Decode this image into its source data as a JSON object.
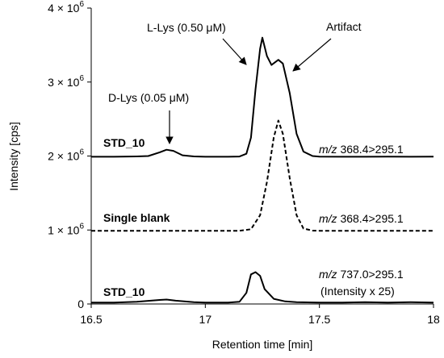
{
  "chart_data": {
    "type": "line",
    "xlabel": "Retention time [min]",
    "ylabel": "Intensity [cps]",
    "xlim": [
      16.5,
      18
    ],
    "ylim": [
      0,
      4000000
    ],
    "x_ticks": [
      {
        "value": 16.5,
        "label": "16.5"
      },
      {
        "value": 17,
        "label": "17"
      },
      {
        "value": 17.5,
        "label": "17.5"
      },
      {
        "value": 18,
        "label": "18"
      }
    ],
    "y_ticks": [
      {
        "value": 0,
        "label": "0",
        "mantissa": "",
        "exp": ""
      },
      {
        "value": 1000000,
        "label": "",
        "mantissa": "1 × 10",
        "exp": "6"
      },
      {
        "value": 2000000,
        "label": "",
        "mantissa": "2 × 10",
        "exp": "6"
      },
      {
        "value": 3000000,
        "label": "",
        "mantissa": "3 × 10",
        "exp": "6"
      },
      {
        "value": 4000000,
        "label": "",
        "mantissa": "4 × 10",
        "exp": "6"
      }
    ],
    "grid": false,
    "legend": "none",
    "series": [
      {
        "name": "STD_10",
        "transition": "368.4>295.1",
        "style": "solid",
        "points": [
          [
            16.5,
            1990000
          ],
          [
            16.6,
            1990000
          ],
          [
            16.7,
            1995000
          ],
          [
            16.75,
            2000000
          ],
          [
            16.8,
            2050000
          ],
          [
            16.83,
            2085000
          ],
          [
            16.86,
            2070000
          ],
          [
            16.9,
            2010000
          ],
          [
            16.95,
            1995000
          ],
          [
            17.0,
            1990000
          ],
          [
            17.1,
            1990000
          ],
          [
            17.15,
            1993000
          ],
          [
            17.18,
            2030000
          ],
          [
            17.2,
            2250000
          ],
          [
            17.22,
            2900000
          ],
          [
            17.24,
            3450000
          ],
          [
            17.25,
            3600000
          ],
          [
            17.27,
            3350000
          ],
          [
            17.29,
            3230000
          ],
          [
            17.32,
            3300000
          ],
          [
            17.34,
            3250000
          ],
          [
            17.37,
            2850000
          ],
          [
            17.4,
            2300000
          ],
          [
            17.43,
            2060000
          ],
          [
            17.47,
            2000000
          ],
          [
            17.5,
            1992000
          ],
          [
            17.6,
            1990000
          ],
          [
            17.7,
            1990000
          ],
          [
            17.8,
            1992000
          ],
          [
            17.9,
            1990000
          ],
          [
            18.0,
            1992000
          ]
        ]
      },
      {
        "name": "Single blank",
        "transition": "368.4>295.1",
        "style": "dashed",
        "points": [
          [
            16.5,
            990000
          ],
          [
            17.0,
            990000
          ],
          [
            17.15,
            990000
          ],
          [
            17.2,
            1010000
          ],
          [
            17.24,
            1200000
          ],
          [
            17.27,
            1650000
          ],
          [
            17.3,
            2250000
          ],
          [
            17.32,
            2480000
          ],
          [
            17.34,
            2300000
          ],
          [
            17.37,
            1700000
          ],
          [
            17.4,
            1200000
          ],
          [
            17.43,
            1020000
          ],
          [
            17.47,
            992000
          ],
          [
            17.5,
            990000
          ],
          [
            18.0,
            990000
          ]
        ]
      },
      {
        "name": "STD_10",
        "transition": "737.0>295.1",
        "style": "solid",
        "points": [
          [
            16.5,
            20000
          ],
          [
            16.6,
            20000
          ],
          [
            16.7,
            30000
          ],
          [
            16.8,
            55000
          ],
          [
            16.83,
            60000
          ],
          [
            16.87,
            45000
          ],
          [
            16.95,
            25000
          ],
          [
            17.0,
            20000
          ],
          [
            17.1,
            20000
          ],
          [
            17.15,
            30000
          ],
          [
            17.18,
            150000
          ],
          [
            17.2,
            400000
          ],
          [
            17.22,
            430000
          ],
          [
            17.24,
            380000
          ],
          [
            17.26,
            200000
          ],
          [
            17.3,
            70000
          ],
          [
            17.35,
            35000
          ],
          [
            17.4,
            25000
          ],
          [
            17.5,
            20000
          ],
          [
            17.6,
            20000
          ],
          [
            17.7,
            25000
          ],
          [
            17.8,
            20000
          ],
          [
            17.9,
            25000
          ],
          [
            18.0,
            20000
          ]
        ]
      }
    ],
    "labels": {
      "std10_top": "STD_10",
      "blank": "Single blank",
      "std10_bottom": "STD_10",
      "mz_prefix": "m/z",
      "tr1": " 368.4>295.1",
      "tr2": " 368.4>295.1",
      "tr3": " 737.0>295.1",
      "intensity_note": "(Intensity x 25)",
      "dlys": "D-Lys (0.05 μM)",
      "llys": "L-Lys (0.50 μM)",
      "artifact": "Artifact"
    }
  }
}
